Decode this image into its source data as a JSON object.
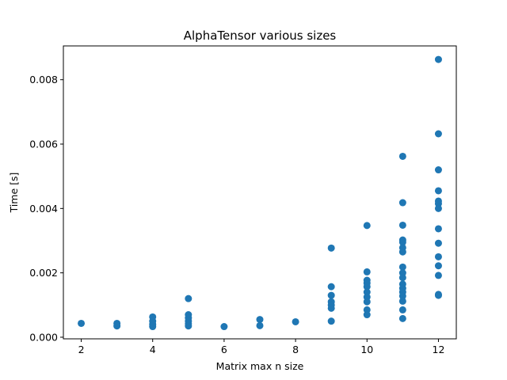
{
  "chart_data": {
    "type": "scatter",
    "title": "AlphaTensor various sizes",
    "xlabel": "Matrix max n size",
    "ylabel": "Time [s]",
    "xlim": [
      1.5,
      12.5
    ],
    "ylim": [
      -5e-05,
      0.00905
    ],
    "xticks": [
      2,
      4,
      6,
      8,
      10,
      12
    ],
    "xtick_labels": [
      "2",
      "4",
      "6",
      "8",
      "10",
      "12"
    ],
    "yticks": [
      0.0,
      0.002,
      0.004,
      0.006,
      0.008
    ],
    "ytick_labels": [
      "0.000",
      "0.002",
      "0.004",
      "0.006",
      "0.008"
    ],
    "grid": false,
    "marker_color": "#1f77b4",
    "series": [
      {
        "points": [
          [
            2,
            0.00043
          ],
          [
            3,
            0.00043
          ],
          [
            3,
            0.00035
          ],
          [
            4,
            0.00063
          ],
          [
            4,
            0.0005
          ],
          [
            4,
            0.0004
          ],
          [
            4,
            0.00033
          ],
          [
            5,
            0.0012
          ],
          [
            5,
            0.0007
          ],
          [
            5,
            0.0006
          ],
          [
            5,
            0.0005
          ],
          [
            5,
            0.00042
          ],
          [
            5,
            0.00035
          ],
          [
            6,
            0.00033
          ],
          [
            7,
            0.00055
          ],
          [
            7,
            0.00036
          ],
          [
            8,
            0.00048
          ],
          [
            9,
            0.00277
          ],
          [
            9,
            0.00157
          ],
          [
            9,
            0.0013
          ],
          [
            9,
            0.0011
          ],
          [
            9,
            0.001
          ],
          [
            9,
            0.0009
          ],
          [
            9,
            0.0005
          ],
          [
            10,
            0.00347
          ],
          [
            10,
            0.00203
          ],
          [
            10,
            0.00177
          ],
          [
            10,
            0.00168
          ],
          [
            10,
            0.00157
          ],
          [
            10,
            0.0014
          ],
          [
            10,
            0.00125
          ],
          [
            10,
            0.0011
          ],
          [
            10,
            0.00085
          ],
          [
            10,
            0.0007
          ],
          [
            11,
            0.00562
          ],
          [
            11,
            0.00418
          ],
          [
            11,
            0.00348
          ],
          [
            11,
            0.00302
          ],
          [
            11,
            0.00295
          ],
          [
            11,
            0.00278
          ],
          [
            11,
            0.00265
          ],
          [
            11,
            0.00218
          ],
          [
            11,
            0.002
          ],
          [
            11,
            0.00185
          ],
          [
            11,
            0.00165
          ],
          [
            11,
            0.00152
          ],
          [
            11,
            0.0014
          ],
          [
            11,
            0.00128
          ],
          [
            11,
            0.00112
          ],
          [
            11,
            0.00085
          ],
          [
            11,
            0.00058
          ],
          [
            12,
            0.00863
          ],
          [
            12,
            0.00632
          ],
          [
            12,
            0.0052
          ],
          [
            12,
            0.00455
          ],
          [
            12,
            0.00423
          ],
          [
            12,
            0.00415
          ],
          [
            12,
            0.004
          ],
          [
            12,
            0.00337
          ],
          [
            12,
            0.00292
          ],
          [
            12,
            0.0025
          ],
          [
            12,
            0.00222
          ],
          [
            12,
            0.00192
          ],
          [
            12,
            0.00133
          ],
          [
            12,
            0.0013
          ]
        ]
      }
    ]
  }
}
